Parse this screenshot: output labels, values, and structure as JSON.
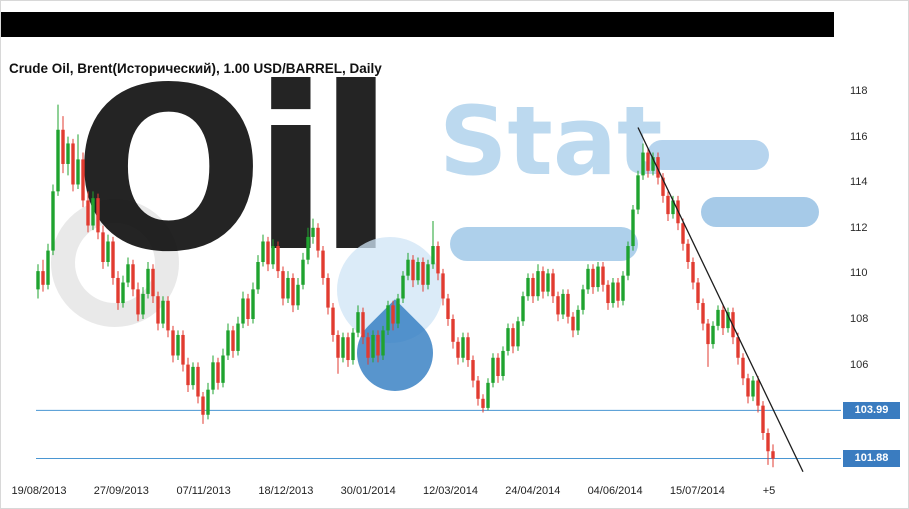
{
  "header": {
    "title": "Crude Oil, Brent(Исторический), 1.00 USD/BARREL, Daily"
  },
  "watermark": {
    "text_dark": "Oil",
    "text_light": "Stat"
  },
  "colors": {
    "up": "#1fa32f",
    "down": "#e13b30",
    "level": "#4a96d2",
    "tag_bg": "#3a7cc0",
    "tag_text": "#ffffff",
    "trend": "#1d1d1d"
  },
  "y_axis": {
    "ticks": [
      118,
      116,
      114,
      112,
      110,
      108,
      106
    ]
  },
  "x_axis": {
    "labels": [
      "19/08/2013",
      "27/09/2013",
      "07/11/2013",
      "18/12/2013",
      "30/01/2014",
      "12/03/2014",
      "24/04/2014",
      "04/06/2014",
      "15/07/2014"
    ],
    "offset_label": "+5"
  },
  "price_tags": [
    {
      "label": "103.99",
      "value": 103.99
    },
    {
      "label": "101.88",
      "value": 101.88
    }
  ],
  "chart_data": {
    "type": "candlestick",
    "title": "Crude Oil, Brent(Исторический), 1.00 USD/BARREL, Daily",
    "instrument": "Crude Oil, Brent",
    "unit": "USD/BARREL",
    "timeframe": "Daily",
    "x_start": "19/08/2013",
    "x_labels": [
      "19/08/2013",
      "27/09/2013",
      "07/11/2013",
      "18/12/2013",
      "30/01/2014",
      "12/03/2014",
      "24/04/2014",
      "04/06/2014",
      "15/07/2014"
    ],
    "bar_offset": "+5",
    "ylim": [
      101,
      118.6
    ],
    "levels": [
      103.99,
      101.88
    ],
    "last_price": 101.88,
    "trendline": {
      "from": {
        "index": 120,
        "price": 116.4
      },
      "to": {
        "index": 153,
        "price": 101.3
      }
    },
    "candles": [
      [
        109.3,
        110.4,
        108.9,
        110.1
      ],
      [
        110.1,
        110.6,
        109.2,
        109.5
      ],
      [
        109.5,
        111.3,
        109.3,
        111.0
      ],
      [
        111.0,
        113.9,
        110.8,
        113.6
      ],
      [
        113.6,
        117.4,
        113.4,
        116.3
      ],
      [
        116.3,
        116.9,
        114.4,
        114.8
      ],
      [
        114.8,
        116.0,
        114.3,
        115.7
      ],
      [
        115.7,
        115.9,
        113.6,
        113.9
      ],
      [
        113.9,
        116.1,
        113.7,
        115.0
      ],
      [
        115.0,
        115.3,
        112.9,
        113.2
      ],
      [
        113.2,
        113.6,
        111.8,
        112.1
      ],
      [
        112.1,
        113.6,
        111.9,
        113.3
      ],
      [
        113.3,
        113.5,
        111.5,
        111.8
      ],
      [
        111.8,
        112.1,
        110.2,
        110.5
      ],
      [
        110.5,
        111.7,
        110.3,
        111.4
      ],
      [
        111.4,
        111.6,
        109.5,
        109.8
      ],
      [
        109.8,
        110.1,
        108.4,
        108.7
      ],
      [
        108.7,
        109.9,
        108.5,
        109.6
      ],
      [
        109.6,
        110.7,
        109.4,
        110.4
      ],
      [
        110.4,
        110.6,
        109.0,
        109.3
      ],
      [
        109.3,
        109.6,
        107.9,
        108.2
      ],
      [
        108.2,
        109.4,
        108.0,
        109.1
      ],
      [
        109.1,
        110.5,
        108.9,
        110.2
      ],
      [
        110.2,
        110.4,
        108.7,
        109.0
      ],
      [
        109.0,
        109.2,
        107.5,
        107.8
      ],
      [
        107.8,
        109.0,
        107.6,
        108.8
      ],
      [
        108.8,
        109.0,
        107.2,
        107.5
      ],
      [
        107.5,
        107.7,
        106.1,
        106.4
      ],
      [
        106.4,
        107.5,
        106.2,
        107.3
      ],
      [
        107.3,
        107.5,
        105.7,
        106.0
      ],
      [
        106.0,
        106.3,
        104.8,
        105.1
      ],
      [
        105.1,
        106.1,
        104.9,
        105.9
      ],
      [
        105.9,
        106.1,
        104.3,
        104.6
      ],
      [
        104.6,
        104.8,
        103.4,
        103.8
      ],
      [
        103.8,
        105.2,
        103.6,
        104.9
      ],
      [
        104.9,
        106.4,
        104.7,
        106.1
      ],
      [
        106.1,
        106.3,
        104.9,
        105.2
      ],
      [
        105.2,
        106.7,
        105.0,
        106.4
      ],
      [
        106.4,
        107.8,
        106.2,
        107.5
      ],
      [
        107.5,
        107.7,
        106.3,
        106.6
      ],
      [
        106.6,
        108.1,
        106.4,
        107.8
      ],
      [
        107.8,
        109.2,
        107.6,
        108.9
      ],
      [
        108.9,
        109.1,
        107.7,
        108.0
      ],
      [
        108.0,
        109.6,
        107.8,
        109.3
      ],
      [
        109.3,
        110.8,
        109.1,
        110.5
      ],
      [
        110.5,
        111.7,
        110.3,
        111.4
      ],
      [
        111.4,
        111.6,
        110.1,
        110.4
      ],
      [
        110.4,
        111.5,
        110.2,
        111.2
      ],
      [
        111.2,
        111.4,
        109.8,
        110.1
      ],
      [
        110.1,
        110.3,
        108.6,
        108.9
      ],
      [
        108.9,
        110.1,
        108.7,
        109.8
      ],
      [
        109.8,
        110.0,
        108.3,
        108.6
      ],
      [
        108.6,
        109.8,
        108.4,
        109.5
      ],
      [
        109.5,
        110.9,
        109.3,
        110.6
      ],
      [
        110.6,
        112.0,
        110.4,
        111.6
      ],
      [
        111.6,
        112.4,
        111.3,
        112.0
      ],
      [
        112.0,
        112.2,
        110.7,
        111.0
      ],
      [
        111.0,
        111.2,
        109.5,
        109.8
      ],
      [
        109.8,
        110.0,
        108.2,
        108.5
      ],
      [
        108.5,
        108.7,
        107.0,
        107.3
      ],
      [
        107.3,
        107.5,
        105.6,
        106.3
      ],
      [
        106.3,
        107.4,
        106.1,
        107.2
      ],
      [
        107.2,
        107.4,
        105.9,
        106.2
      ],
      [
        106.2,
        107.6,
        106.0,
        107.4
      ],
      [
        107.4,
        108.6,
        107.2,
        108.3
      ],
      [
        108.3,
        108.5,
        106.9,
        107.2
      ],
      [
        107.2,
        107.4,
        106.0,
        106.3
      ],
      [
        106.3,
        107.5,
        106.1,
        107.3
      ],
      [
        107.3,
        107.5,
        106.1,
        106.4
      ],
      [
        106.4,
        107.7,
        106.2,
        107.5
      ],
      [
        107.5,
        108.8,
        107.3,
        108.6
      ],
      [
        108.6,
        108.8,
        107.5,
        107.8
      ],
      [
        107.8,
        109.1,
        107.6,
        108.9
      ],
      [
        108.9,
        110.1,
        108.7,
        109.9
      ],
      [
        109.9,
        110.9,
        109.7,
        110.6
      ],
      [
        110.6,
        110.8,
        109.4,
        109.7
      ],
      [
        109.7,
        110.7,
        109.5,
        110.5
      ],
      [
        110.5,
        110.7,
        109.2,
        109.5
      ],
      [
        109.5,
        110.6,
        109.3,
        110.4
      ],
      [
        110.4,
        112.3,
        110.2,
        111.2
      ],
      [
        111.2,
        111.4,
        109.7,
        110.0
      ],
      [
        110.0,
        110.2,
        108.6,
        108.9
      ],
      [
        108.9,
        109.1,
        107.7,
        108.0
      ],
      [
        108.0,
        108.2,
        106.7,
        107.0
      ],
      [
        107.0,
        107.2,
        106.0,
        106.3
      ],
      [
        106.3,
        107.4,
        106.1,
        107.2
      ],
      [
        107.2,
        107.4,
        105.9,
        106.2
      ],
      [
        106.2,
        106.4,
        105.0,
        105.3
      ],
      [
        105.3,
        105.5,
        104.2,
        104.5
      ],
      [
        104.5,
        104.7,
        103.9,
        104.1
      ],
      [
        104.1,
        105.4,
        104.0,
        105.2
      ],
      [
        105.2,
        106.5,
        105.0,
        106.3
      ],
      [
        106.3,
        106.5,
        105.2,
        105.5
      ],
      [
        105.5,
        106.8,
        105.3,
        106.6
      ],
      [
        106.6,
        107.8,
        106.4,
        107.6
      ],
      [
        107.6,
        107.8,
        106.5,
        106.8
      ],
      [
        106.8,
        108.1,
        106.6,
        107.9
      ],
      [
        107.9,
        109.2,
        107.7,
        109.0
      ],
      [
        109.0,
        110.0,
        108.8,
        109.8
      ],
      [
        109.8,
        110.0,
        108.7,
        109.0
      ],
      [
        109.0,
        110.4,
        108.8,
        110.1
      ],
      [
        110.1,
        110.3,
        108.9,
        109.2
      ],
      [
        109.2,
        110.2,
        109.0,
        110.0
      ],
      [
        110.0,
        110.2,
        108.7,
        109.0
      ],
      [
        109.0,
        109.2,
        107.9,
        108.2
      ],
      [
        108.2,
        109.3,
        108.0,
        109.1
      ],
      [
        109.1,
        109.3,
        107.8,
        108.1
      ],
      [
        108.1,
        108.3,
        107.2,
        107.5
      ],
      [
        107.5,
        108.6,
        107.3,
        108.4
      ],
      [
        108.4,
        109.5,
        108.2,
        109.3
      ],
      [
        109.3,
        110.4,
        109.1,
        110.2
      ],
      [
        110.2,
        110.4,
        109.1,
        109.4
      ],
      [
        109.4,
        110.5,
        109.2,
        110.3
      ],
      [
        110.3,
        110.5,
        109.2,
        109.5
      ],
      [
        109.5,
        109.7,
        108.4,
        108.7
      ],
      [
        108.7,
        109.8,
        108.5,
        109.6
      ],
      [
        109.6,
        109.8,
        108.5,
        108.8
      ],
      [
        108.8,
        110.1,
        108.6,
        109.9
      ],
      [
        109.9,
        111.4,
        109.7,
        111.2
      ],
      [
        111.2,
        113.0,
        111.0,
        112.8
      ],
      [
        112.8,
        114.5,
        112.6,
        114.3
      ],
      [
        114.3,
        115.7,
        114.1,
        115.3
      ],
      [
        115.3,
        115.5,
        114.2,
        114.5
      ],
      [
        114.5,
        115.3,
        114.3,
        115.1
      ],
      [
        115.1,
        115.3,
        113.9,
        114.2
      ],
      [
        114.2,
        114.4,
        113.1,
        113.4
      ],
      [
        113.4,
        113.6,
        112.3,
        112.6
      ],
      [
        112.6,
        113.4,
        112.4,
        113.2
      ],
      [
        113.2,
        113.4,
        111.9,
        112.2
      ],
      [
        112.2,
        112.4,
        111.0,
        111.3
      ],
      [
        111.3,
        111.5,
        110.2,
        110.5
      ],
      [
        110.5,
        110.7,
        109.3,
        109.6
      ],
      [
        109.6,
        109.8,
        108.4,
        108.7
      ],
      [
        108.7,
        108.9,
        107.5,
        107.8
      ],
      [
        107.8,
        108.0,
        105.9,
        106.9
      ],
      [
        106.9,
        107.9,
        106.7,
        107.7
      ],
      [
        107.7,
        108.6,
        107.5,
        108.4
      ],
      [
        108.4,
        108.6,
        107.3,
        107.6
      ],
      [
        107.6,
        108.5,
        107.4,
        108.3
      ],
      [
        108.3,
        108.5,
        106.9,
        107.2
      ],
      [
        107.2,
        107.4,
        106.0,
        106.3
      ],
      [
        106.3,
        106.5,
        105.1,
        105.4
      ],
      [
        105.4,
        105.6,
        104.3,
        104.6
      ],
      [
        104.6,
        105.5,
        104.4,
        105.3
      ],
      [
        105.3,
        105.5,
        103.9,
        104.2
      ],
      [
        104.2,
        104.4,
        102.7,
        103.0
      ],
      [
        103.0,
        103.2,
        101.6,
        102.2
      ],
      [
        102.2,
        102.5,
        101.5,
        101.88
      ]
    ]
  }
}
